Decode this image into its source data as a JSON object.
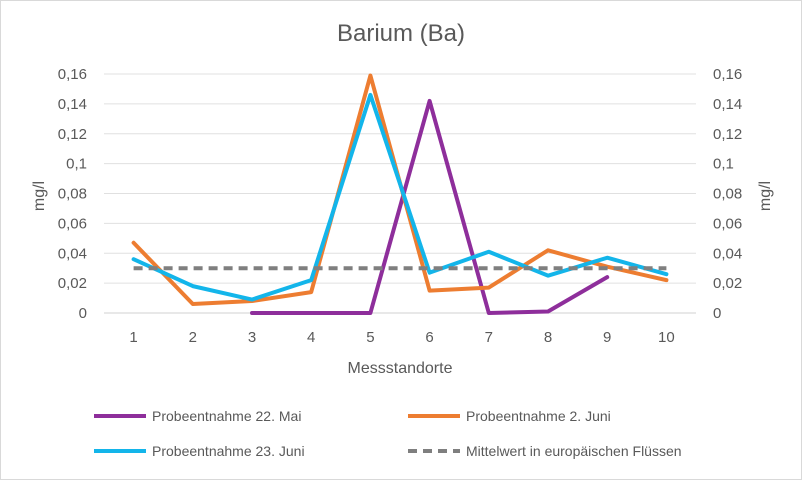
{
  "chart_data": {
    "type": "line",
    "title": "Barium (Ba)",
    "xlabel": "Messstandorte",
    "ylabel": "mg/l",
    "ylabel_right": "mg/l",
    "x": [
      "1",
      "2",
      "3",
      "4",
      "5",
      "6",
      "7",
      "8",
      "9",
      "10"
    ],
    "ylim": [
      0,
      0.16
    ],
    "yticks": [
      "0",
      "0,02",
      "0,04",
      "0,06",
      "0,08",
      "0,1",
      "0,12",
      "0,14",
      "0,16"
    ],
    "grid": true,
    "legend_position": "bottom",
    "series": [
      {
        "name": "Probeentnahme 22. Mai",
        "color": "#8E2E9B",
        "dashed": false,
        "values": [
          null,
          null,
          0.0,
          0.0,
          0.0,
          0.142,
          0.0,
          0.001,
          0.024,
          null
        ]
      },
      {
        "name": "Probeentnahme 2. Juni",
        "color": "#ED7D31",
        "dashed": false,
        "values": [
          0.047,
          0.006,
          0.008,
          0.014,
          0.159,
          0.015,
          0.017,
          0.042,
          0.031,
          0.022
        ]
      },
      {
        "name": "Probeentnahme 23. Juni",
        "color": "#13B5EA",
        "dashed": false,
        "values": [
          0.036,
          0.018,
          0.009,
          0.022,
          0.146,
          0.027,
          0.041,
          0.025,
          0.037,
          0.026
        ]
      },
      {
        "name": "Mittelwert in europäischen Flüssen",
        "color": "#7F7F7F",
        "dashed": true,
        "values": [
          0.03,
          0.03,
          0.03,
          0.03,
          0.03,
          0.03,
          0.03,
          0.03,
          0.03,
          0.03
        ]
      }
    ]
  }
}
